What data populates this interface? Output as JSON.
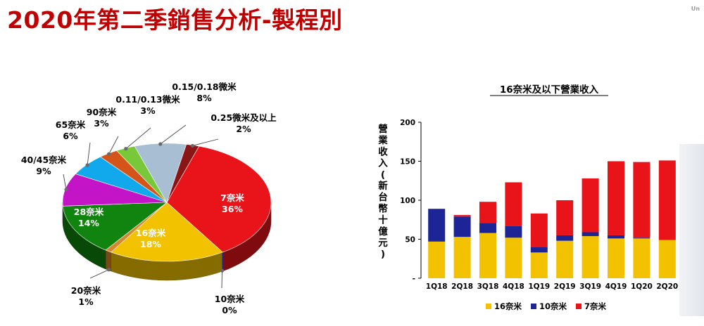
{
  "header": {
    "title": "2020年第二季銷售分析-製程別",
    "corner_mark": "Un"
  },
  "chart_data": [
    {
      "type": "pie",
      "slices": [
        {
          "label": "7奈米",
          "percent_text": "36%",
          "value": 36,
          "color": "#e8141a"
        },
        {
          "label": "10奈米",
          "percent_text": "0%",
          "value": 0,
          "color": "#1c2496"
        },
        {
          "label": "16奈米",
          "percent_text": "18%",
          "value": 18,
          "color": "#f2c200"
        },
        {
          "label": "20奈米",
          "percent_text": "1%",
          "value": 1,
          "color": "#d8862a"
        },
        {
          "label": "28奈米",
          "percent_text": "14%",
          "value": 14,
          "color": "#11840f"
        },
        {
          "label": "40/45奈米",
          "percent_text": "9%",
          "value": 9,
          "color": "#c414c8"
        },
        {
          "label": "65奈米",
          "percent_text": "6%",
          "value": 6,
          "color": "#12a8ec"
        },
        {
          "label": "90奈米",
          "percent_text": "3%",
          "value": 3,
          "color": "#d4541a"
        },
        {
          "label": "0.11/0.13微米",
          "percent_text": "3%",
          "value": 3,
          "color": "#79c83a"
        },
        {
          "label": "0.15/0.18微米",
          "percent_text": "8%",
          "value": 8,
          "color": "#a8bed2"
        },
        {
          "label": "0.25微米及以上",
          "percent_text": "2%",
          "value": 2,
          "color": "#8a1515"
        }
      ]
    },
    {
      "type": "bar",
      "stacked": true,
      "title": "16奈米及以下營業收入",
      "ylabel": "營業收入(新台幣十億元)",
      "ylim": [
        0,
        200
      ],
      "yticks": [
        "-",
        "50",
        "100",
        "150",
        "200"
      ],
      "categories": [
        "1Q18",
        "2Q18",
        "3Q18",
        "4Q18",
        "1Q19",
        "2Q19",
        "3Q19",
        "4Q19",
        "1Q20",
        "2Q20"
      ],
      "series": [
        {
          "name": "16奈米",
          "color": "#f2c200",
          "values": [
            47,
            53,
            58,
            52,
            33,
            48,
            54,
            51,
            51,
            49
          ]
        },
        {
          "name": "10奈米",
          "color": "#1c2496",
          "values": [
            42,
            26,
            13,
            15,
            7,
            7,
            5,
            4,
            1,
            0
          ]
        },
        {
          "name": "7奈米",
          "color": "#e8141a",
          "values": [
            0,
            2,
            27,
            56,
            43,
            45,
            69,
            95,
            97,
            102
          ]
        }
      ],
      "legend_position": "bottom"
    }
  ]
}
